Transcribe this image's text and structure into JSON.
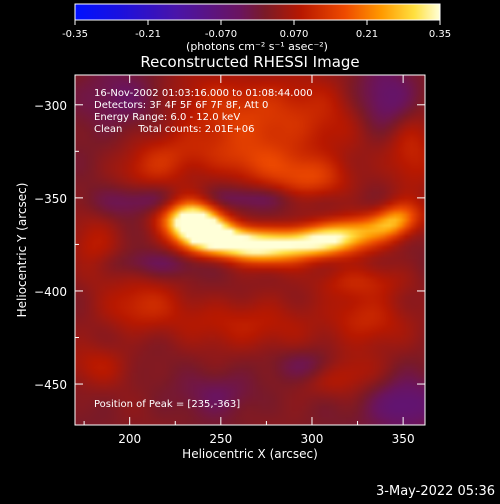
{
  "colorbar": {
    "tick_labels": [
      "-0.35",
      "-0.21",
      "-0.070",
      "0.070",
      "0.21",
      "0.35"
    ],
    "range": [
      -0.35,
      0.35
    ],
    "units_label": "(photons cm⁻² s⁻¹ asec⁻²)"
  },
  "chart_data": {
    "type": "heatmap",
    "title": "Reconstructed RHESSI Image",
    "xlabel": "Heliocentric X (arcsec)",
    "ylabel": "Heliocentric Y (arcsec)",
    "xlim": [
      170,
      362
    ],
    "ylim": [
      -472,
      -284
    ],
    "x_ticks": [
      200,
      250,
      300,
      350
    ],
    "y_ticks": [
      -300,
      -350,
      -400,
      -450
    ],
    "annotations": [
      "16-Nov-2002 01:03:16.000 to 01:08:44.000",
      "Detectors: 3F 4F 5F 6F 7F 8F, Att 0",
      "Energy Range: 6.0 - 12.0 keV",
      "Clean     Total counts: 2.01E+06"
    ],
    "peak_label": "Position of Peak = [235,-363]",
    "peak": [
      235,
      -363
    ],
    "features": [
      {
        "x": 236,
        "y": -363,
        "rx": 11,
        "ry": 9,
        "angle": -35,
        "amp": 1.0
      },
      {
        "x": 250,
        "y": -371,
        "rx": 22,
        "ry": 6,
        "angle": -18,
        "amp": 0.72
      },
      {
        "x": 282,
        "y": -374,
        "rx": 28,
        "ry": 6,
        "angle": 0,
        "amp": 0.68
      },
      {
        "x": 316,
        "y": -370,
        "rx": 22,
        "ry": 6,
        "angle": 12,
        "amp": 0.63
      },
      {
        "x": 346,
        "y": -362,
        "rx": 9,
        "ry": 6,
        "angle": 20,
        "amp": 0.48
      },
      {
        "x": 275,
        "y": -306,
        "rx": 40,
        "ry": 16,
        "angle": -5,
        "amp": 0.34
      },
      {
        "x": 270,
        "y": -332,
        "rx": 26,
        "ry": 9,
        "angle": -10,
        "amp": 0.26
      },
      {
        "x": 214,
        "y": -332,
        "rx": 16,
        "ry": 9,
        "angle": 20,
        "amp": 0.24
      },
      {
        "x": 205,
        "y": -408,
        "rx": 16,
        "ry": 10,
        "angle": 10,
        "amp": 0.24
      },
      {
        "x": 262,
        "y": -418,
        "rx": 26,
        "ry": 10,
        "angle": -5,
        "amp": 0.22
      },
      {
        "x": 330,
        "y": -415,
        "rx": 16,
        "ry": 10,
        "angle": -20,
        "amp": 0.26
      },
      {
        "x": 315,
        "y": -445,
        "rx": 16,
        "ry": 8,
        "angle": 10,
        "amp": 0.2
      },
      {
        "x": 180,
        "y": -378,
        "rx": 10,
        "ry": 14,
        "angle": 0,
        "amp": 0.18
      },
      {
        "x": 182,
        "y": -440,
        "rx": 14,
        "ry": 8,
        "angle": 0,
        "amp": 0.16
      },
      {
        "x": 302,
        "y": -340,
        "rx": 14,
        "ry": 8,
        "angle": 0,
        "amp": 0.22
      },
      {
        "x": 325,
        "y": -395,
        "rx": 18,
        "ry": 6,
        "angle": 0,
        "amp": 0.2
      },
      {
        "x": 355,
        "y": -320,
        "rx": 10,
        "ry": 18,
        "angle": 0,
        "amp": 0.24
      },
      {
        "x": 212,
        "y": -352,
        "rx": 22,
        "ry": 6,
        "angle": 0,
        "amp": -0.22
      },
      {
        "x": 342,
        "y": -300,
        "rx": 14,
        "ry": 14,
        "angle": 0,
        "amp": -0.3
      },
      {
        "x": 195,
        "y": -298,
        "rx": 18,
        "ry": 12,
        "angle": 0,
        "amp": -0.2
      },
      {
        "x": 265,
        "y": -350,
        "rx": 24,
        "ry": 4,
        "angle": 0,
        "amp": -0.15
      },
      {
        "x": 215,
        "y": -385,
        "rx": 25,
        "ry": 5,
        "angle": 0,
        "amp": -0.14
      },
      {
        "x": 300,
        "y": -440,
        "rx": 12,
        "ry": 6,
        "angle": 0,
        "amp": -0.18
      },
      {
        "x": 350,
        "y": -462,
        "rx": 14,
        "ry": 10,
        "angle": 0,
        "amp": -0.28
      },
      {
        "x": 250,
        "y": -455,
        "rx": 14,
        "ry": 8,
        "angle": 0,
        "amp": -0.15
      }
    ]
  },
  "footer": {
    "date_label": "3-May-2022 05:36"
  },
  "colors": {
    "background": "#000000",
    "text": "#ffffff"
  }
}
